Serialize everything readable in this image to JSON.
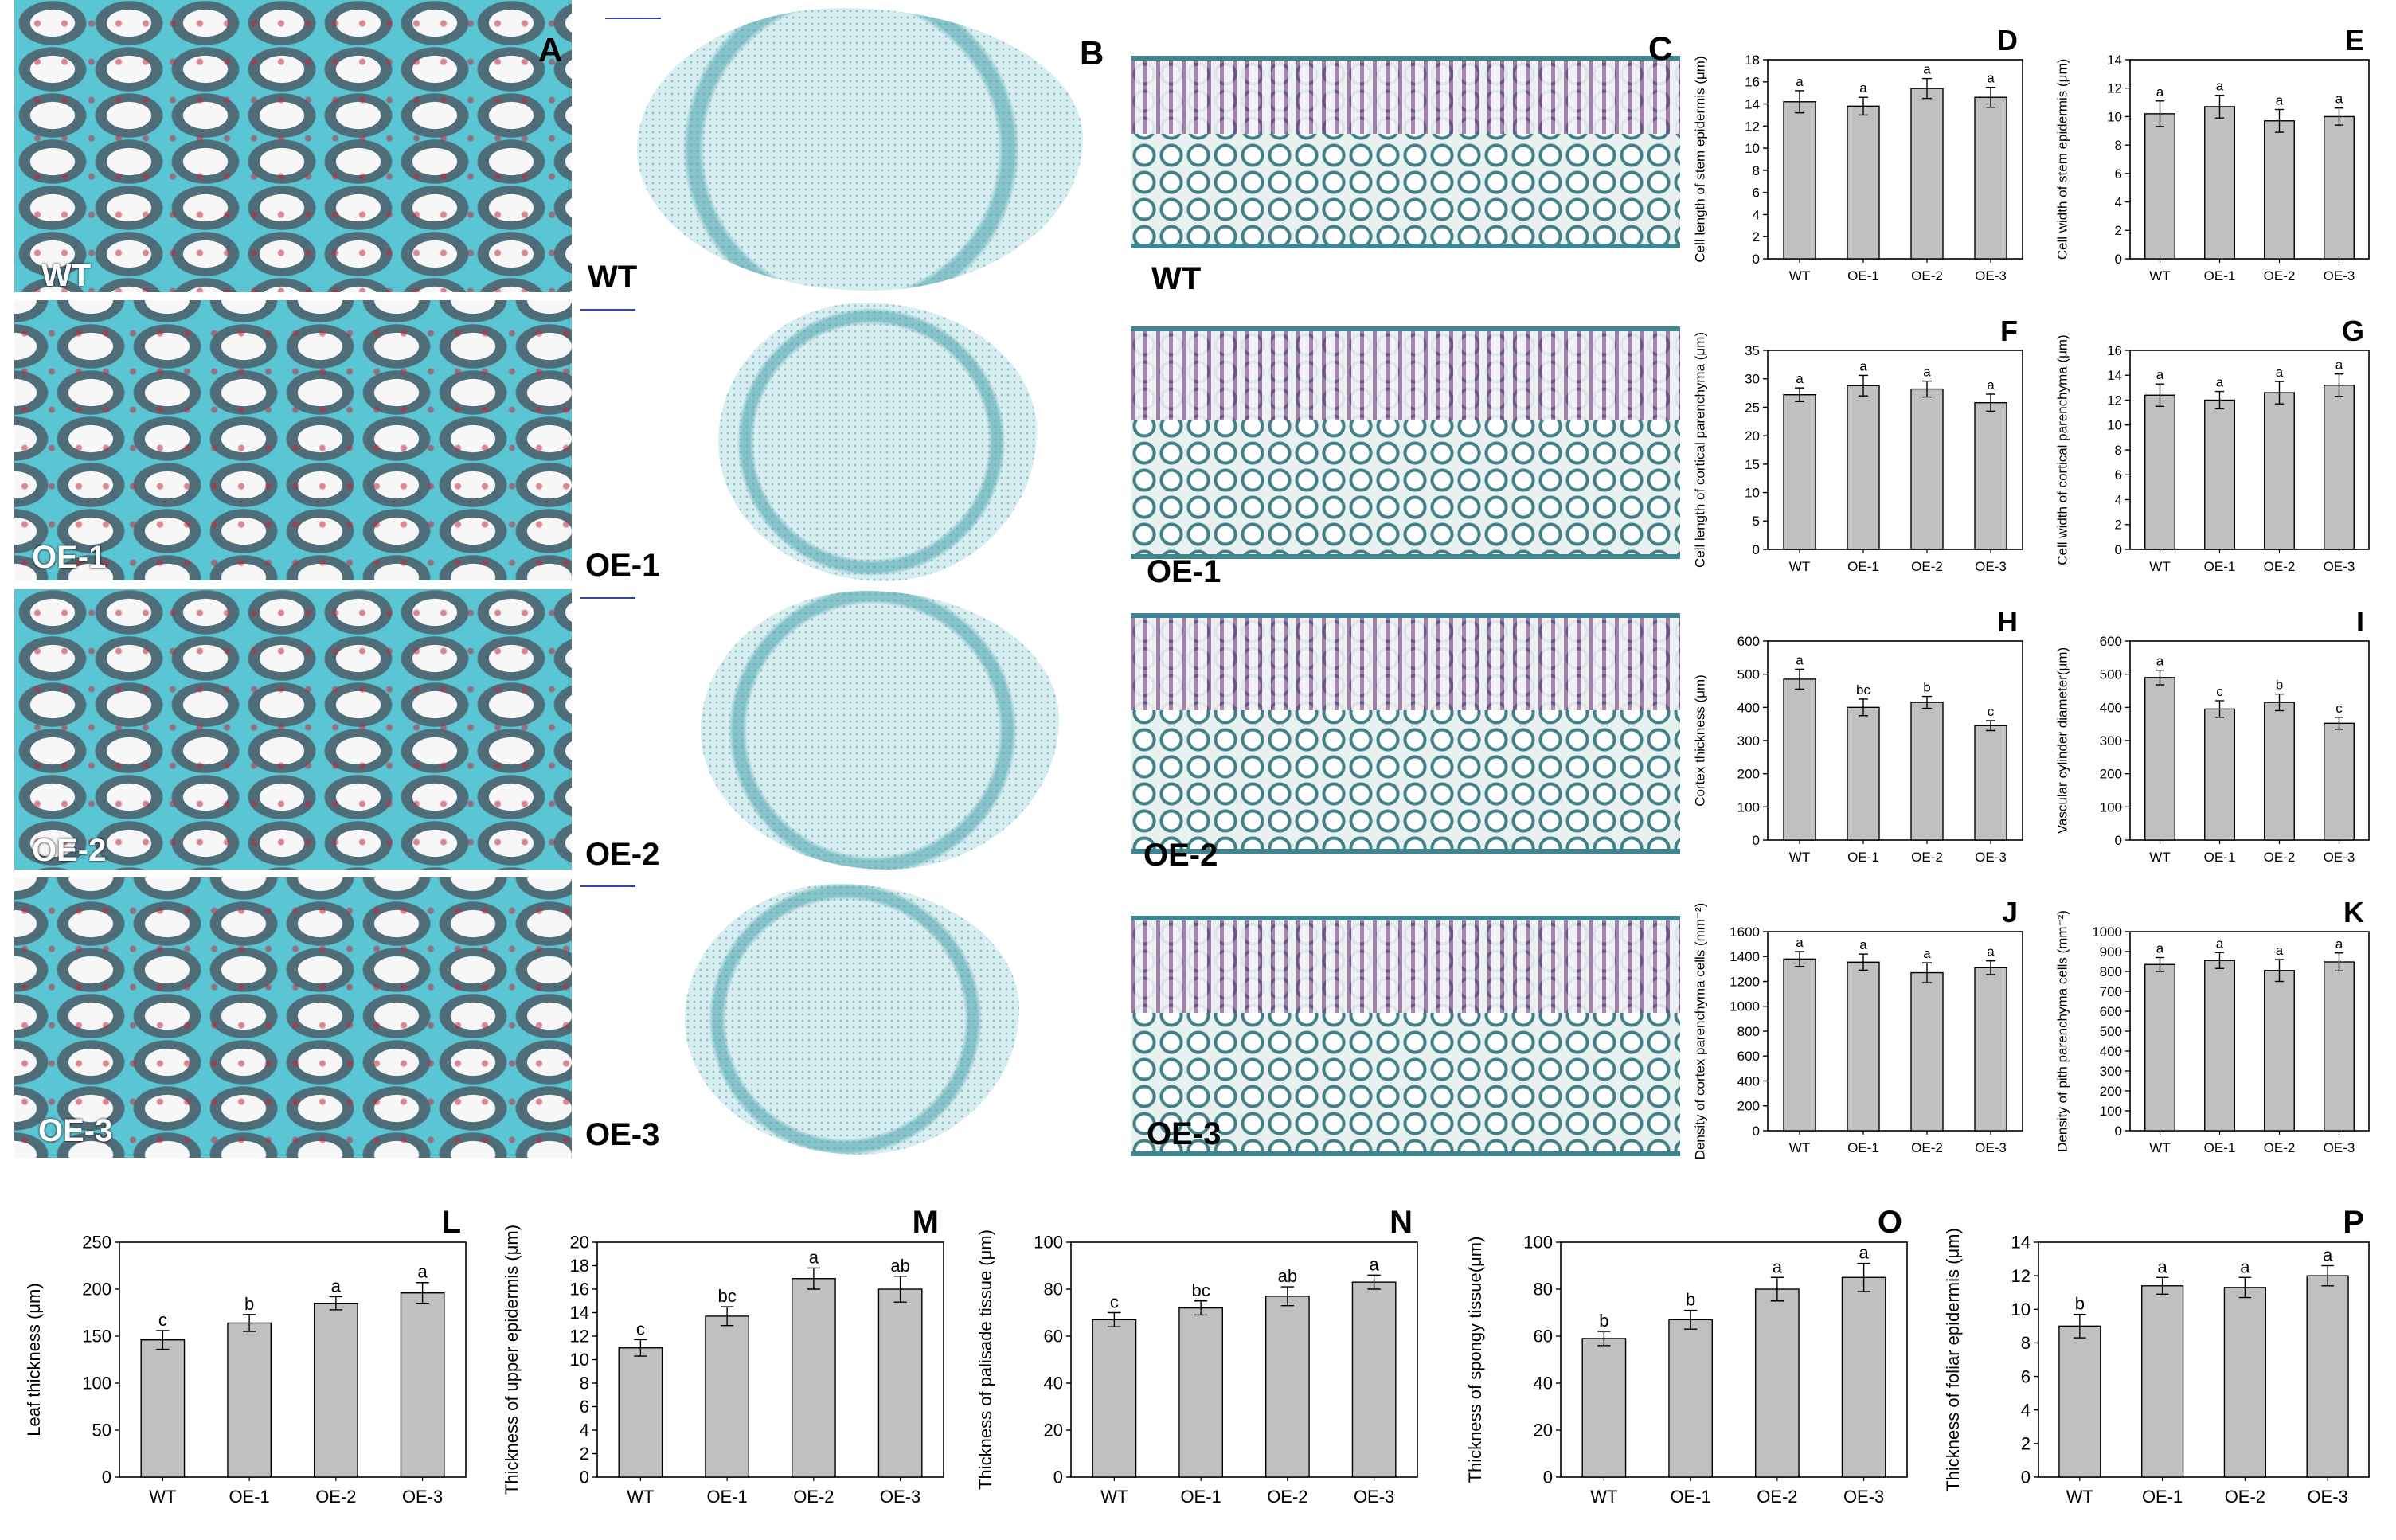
{
  "panel_letters": {
    "A": "A",
    "B": "B",
    "C": "C"
  },
  "genotypes": [
    "WT",
    "OE-1",
    "OE-2",
    "OE-3"
  ],
  "chart_data": [
    {
      "id": "D",
      "type": "bar",
      "categories": [
        "WT",
        "OE-1",
        "OE-2",
        "OE-3"
      ],
      "values": [
        14.2,
        13.8,
        15.4,
        14.6
      ],
      "errors": [
        1.0,
        0.8,
        0.9,
        0.9
      ],
      "letters": [
        "a",
        "a",
        "a",
        "a"
      ],
      "ylabel": "Cell length of stem epidermis (μm)",
      "ylim": [
        0,
        18
      ],
      "yticks": [
        0,
        2,
        4,
        6,
        8,
        10,
        12,
        14,
        16,
        18
      ]
    },
    {
      "id": "E",
      "type": "bar",
      "categories": [
        "WT",
        "OE-1",
        "OE-2",
        "OE-3"
      ],
      "values": [
        10.2,
        10.7,
        9.7,
        10.0
      ],
      "errors": [
        0.9,
        0.8,
        0.8,
        0.6
      ],
      "letters": [
        "a",
        "a",
        "a",
        "a"
      ],
      "ylabel": "Cell width of stem epidermis (μm)",
      "ylim": [
        0,
        14
      ],
      "yticks": [
        0,
        2,
        4,
        6,
        8,
        10,
        12,
        14
      ]
    },
    {
      "id": "F",
      "type": "bar",
      "categories": [
        "WT",
        "OE-1",
        "OE-2",
        "OE-3"
      ],
      "values": [
        27.2,
        28.8,
        28.2,
        25.8
      ],
      "errors": [
        1.2,
        1.8,
        1.4,
        1.5
      ],
      "letters": [
        "a",
        "a",
        "a",
        "a"
      ],
      "ylabel": "Cell length of cortical parenchyma (μm)",
      "ylim": [
        0,
        35
      ],
      "yticks": [
        0,
        5,
        10,
        15,
        20,
        25,
        30,
        35
      ]
    },
    {
      "id": "G",
      "type": "bar",
      "categories": [
        "WT",
        "OE-1",
        "OE-2",
        "OE-3"
      ],
      "values": [
        12.4,
        12.0,
        12.6,
        13.2
      ],
      "errors": [
        0.9,
        0.7,
        0.9,
        0.9
      ],
      "letters": [
        "a",
        "a",
        "a",
        "a"
      ],
      "ylabel": "Cell width of cortical parenchyma (μm)",
      "ylim": [
        0,
        16
      ],
      "yticks": [
        0,
        2,
        4,
        6,
        8,
        10,
        12,
        14,
        16
      ]
    },
    {
      "id": "H",
      "type": "bar",
      "categories": [
        "WT",
        "OE-1",
        "OE-2",
        "OE-3"
      ],
      "values": [
        485,
        400,
        415,
        345
      ],
      "errors": [
        30,
        25,
        18,
        15
      ],
      "letters": [
        "a",
        "bc",
        "b",
        "c"
      ],
      "ylabel": "Cortex thickness (μm)",
      "ylim": [
        0,
        600
      ],
      "yticks": [
        0,
        100,
        200,
        300,
        400,
        500,
        600
      ]
    },
    {
      "id": "I",
      "type": "bar",
      "categories": [
        "WT",
        "OE-1",
        "OE-2",
        "OE-3"
      ],
      "values": [
        490,
        395,
        415,
        352
      ],
      "errors": [
        22,
        25,
        25,
        18
      ],
      "letters": [
        "a",
        "c",
        "b",
        "c"
      ],
      "ylabel": "Vascular cylinder diameter(μm)",
      "ylim": [
        0,
        600
      ],
      "yticks": [
        0,
        100,
        200,
        300,
        400,
        500,
        600
      ]
    },
    {
      "id": "J",
      "type": "bar",
      "categories": [
        "WT",
        "OE-1",
        "OE-2",
        "OE-3"
      ],
      "values": [
        1380,
        1355,
        1270,
        1310
      ],
      "errors": [
        60,
        65,
        80,
        55
      ],
      "letters": [
        "a",
        "a",
        "a",
        "a"
      ],
      "ylabel": "Density of cortex parenchyma cells (mm⁻²)",
      "ylim": [
        0,
        1600
      ],
      "yticks": [
        0,
        200,
        400,
        600,
        800,
        1000,
        1200,
        1400,
        1600
      ]
    },
    {
      "id": "K",
      "type": "bar",
      "categories": [
        "WT",
        "OE-1",
        "OE-2",
        "OE-3"
      ],
      "values": [
        835,
        855,
        805,
        848
      ],
      "errors": [
        35,
        40,
        55,
        45
      ],
      "letters": [
        "a",
        "a",
        "a",
        "a"
      ],
      "ylabel": "Density of pith parenchyma cells (mm⁻²)",
      "ylim": [
        0,
        1000
      ],
      "yticks": [
        0,
        100,
        200,
        300,
        400,
        500,
        600,
        700,
        800,
        900,
        1000
      ]
    },
    {
      "id": "L",
      "type": "bar",
      "categories": [
        "WT",
        "OE-1",
        "OE-2",
        "OE-3"
      ],
      "values": [
        146,
        164,
        185,
        196
      ],
      "errors": [
        10,
        9,
        7,
        11
      ],
      "letters": [
        "c",
        "b",
        "a",
        "a"
      ],
      "ylabel": "Leaf thickness (μm)",
      "ylim": [
        0,
        250
      ],
      "yticks": [
        0,
        50,
        100,
        150,
        200,
        250
      ]
    },
    {
      "id": "M",
      "type": "bar",
      "categories": [
        "WT",
        "OE-1",
        "OE-2",
        "OE-3"
      ],
      "values": [
        11.0,
        13.7,
        16.9,
        16.0
      ],
      "errors": [
        0.7,
        0.8,
        0.9,
        1.1
      ],
      "letters": [
        "c",
        "bc",
        "a",
        "ab"
      ],
      "ylabel": "Thickness of upper epidermis (μm)",
      "ylim": [
        0,
        20
      ],
      "yticks": [
        0,
        2,
        4,
        6,
        8,
        10,
        12,
        14,
        16,
        18,
        20
      ]
    },
    {
      "id": "N",
      "type": "bar",
      "categories": [
        "WT",
        "OE-1",
        "OE-2",
        "OE-3"
      ],
      "values": [
        67,
        72,
        77,
        83
      ],
      "errors": [
        3,
        3,
        4,
        3
      ],
      "letters": [
        "c",
        "bc",
        "ab",
        "a"
      ],
      "ylabel": "Thickness of palisade tissue (μm)",
      "ylim": [
        0,
        100
      ],
      "yticks": [
        0,
        20,
        40,
        60,
        80,
        100
      ]
    },
    {
      "id": "O",
      "type": "bar",
      "categories": [
        "WT",
        "OE-1",
        "OE-2",
        "OE-3"
      ],
      "values": [
        59,
        67,
        80,
        85
      ],
      "errors": [
        3,
        4,
        5,
        6
      ],
      "letters": [
        "b",
        "b",
        "a",
        "a"
      ],
      "ylabel": "Thickness of spongy tissue(μm)",
      "ylim": [
        0,
        100
      ],
      "yticks": [
        0,
        20,
        40,
        60,
        80,
        100
      ]
    },
    {
      "id": "P",
      "type": "bar",
      "categories": [
        "WT",
        "OE-1",
        "OE-2",
        "OE-3"
      ],
      "values": [
        9.0,
        11.4,
        11.3,
        12.0
      ],
      "errors": [
        0.7,
        0.5,
        0.6,
        0.6
      ],
      "letters": [
        "b",
        "a",
        "a",
        "a"
      ],
      "ylabel": "Thickness of foliar epidermis (μm)",
      "ylim": [
        0,
        14
      ],
      "yticks": [
        0,
        2,
        4,
        6,
        8,
        10,
        12,
        14
      ]
    }
  ],
  "colors": {
    "bar_fill": "#c0c0c0",
    "bar_stroke": "#000000",
    "stain_teal": "#40bec9",
    "stain_red": "#be283c"
  }
}
